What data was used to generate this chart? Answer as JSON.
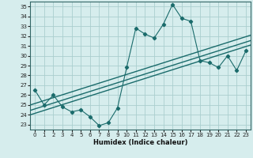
{
  "title": "",
  "xlabel": "Humidex (Indice chaleur)",
  "xlim": [
    -0.5,
    23.5
  ],
  "ylim": [
    22.5,
    35.5
  ],
  "xticks": [
    0,
    1,
    2,
    3,
    4,
    5,
    6,
    7,
    8,
    9,
    10,
    11,
    12,
    13,
    14,
    15,
    16,
    17,
    18,
    19,
    20,
    21,
    22,
    23
  ],
  "yticks": [
    23,
    24,
    25,
    26,
    27,
    28,
    29,
    30,
    31,
    32,
    33,
    34,
    35
  ],
  "bg_color": "#d6eded",
  "grid_color": "#aacece",
  "line_color": "#1a6b6b",
  "scatter_x": [
    0,
    1,
    2,
    3,
    4,
    5,
    6,
    7,
    8,
    9,
    10,
    11,
    12,
    13,
    14,
    15,
    16,
    17,
    18,
    19,
    20,
    21,
    22,
    23
  ],
  "scatter_y": [
    26.5,
    25.0,
    26.0,
    24.8,
    24.3,
    24.5,
    23.8,
    22.9,
    23.2,
    24.7,
    28.8,
    32.8,
    32.2,
    31.8,
    33.2,
    35.2,
    33.8,
    33.5,
    29.5,
    29.3,
    28.8,
    30.0,
    28.5,
    30.5
  ],
  "reg_offsets": [
    -0.45,
    0.0,
    0.55
  ],
  "reg_slope": 0.295,
  "reg_intercept": 24.6
}
